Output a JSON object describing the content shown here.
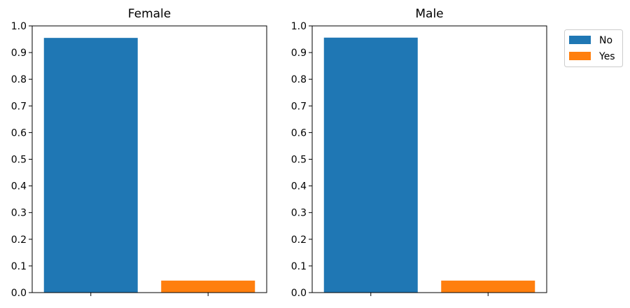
{
  "colors": {
    "No": "#1f77b4",
    "Yes": "#ff7f0e"
  },
  "legend": {
    "placement": "outside-right-top",
    "entries": [
      "No",
      "Yes"
    ]
  },
  "chart_data": [
    {
      "type": "bar",
      "title": "Female",
      "xlabel": "",
      "ylabel": "",
      "ylim": [
        0,
        1.0
      ],
      "yticks": [
        "0.0",
        "0.1",
        "0.2",
        "0.3",
        "0.4",
        "0.5",
        "0.6",
        "0.7",
        "0.8",
        "0.9",
        "1.0"
      ],
      "grid": false,
      "series": [
        {
          "name": "No",
          "values": [
            0.955
          ]
        },
        {
          "name": "Yes",
          "values": [
            0.045
          ]
        }
      ]
    },
    {
      "type": "bar",
      "title": "Male",
      "xlabel": "",
      "ylabel": "",
      "ylim": [
        0,
        1.0
      ],
      "yticks": [
        "0.0",
        "0.1",
        "0.2",
        "0.3",
        "0.4",
        "0.5",
        "0.6",
        "0.7",
        "0.8",
        "0.9",
        "1.0"
      ],
      "grid": false,
      "series": [
        {
          "name": "No",
          "values": [
            0.956
          ]
        },
        {
          "name": "Yes",
          "values": [
            0.045
          ]
        }
      ]
    }
  ]
}
